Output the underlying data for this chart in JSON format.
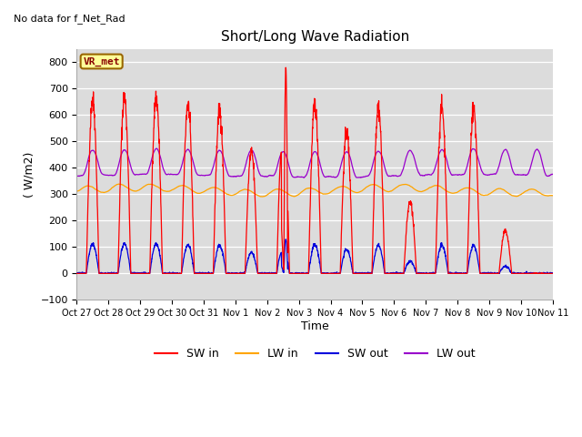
{
  "title": "Short/Long Wave Radiation",
  "xlabel": "Time",
  "ylabel": "( W/m2)",
  "ylim": [
    -100,
    850
  ],
  "yticks": [
    -100,
    0,
    100,
    200,
    300,
    400,
    500,
    600,
    700,
    800
  ],
  "plot_bg": "#dcdcdc",
  "fig_bg": "#ffffff",
  "sw_in_color": "#ff0000",
  "lw_in_color": "#ffa500",
  "sw_out_color": "#0000dd",
  "lw_out_color": "#9900cc",
  "top_label": "No data for f_Net_Rad",
  "box_label": "VR_met",
  "legend_labels": [
    "SW in",
    "LW in",
    "SW out",
    "LW out"
  ],
  "x_tick_labels": [
    "Oct 27",
    "Oct 28",
    "Oct 29",
    "Oct 30",
    "Oct 31",
    "Nov 1",
    "Nov 2",
    "Nov 3",
    "Nov 4",
    "Nov 5",
    "Nov 6",
    "Nov 7",
    "Nov 8",
    "Nov 9",
    "Nov 10",
    "Nov 11"
  ],
  "n_days": 15,
  "pts_per_day": 144
}
